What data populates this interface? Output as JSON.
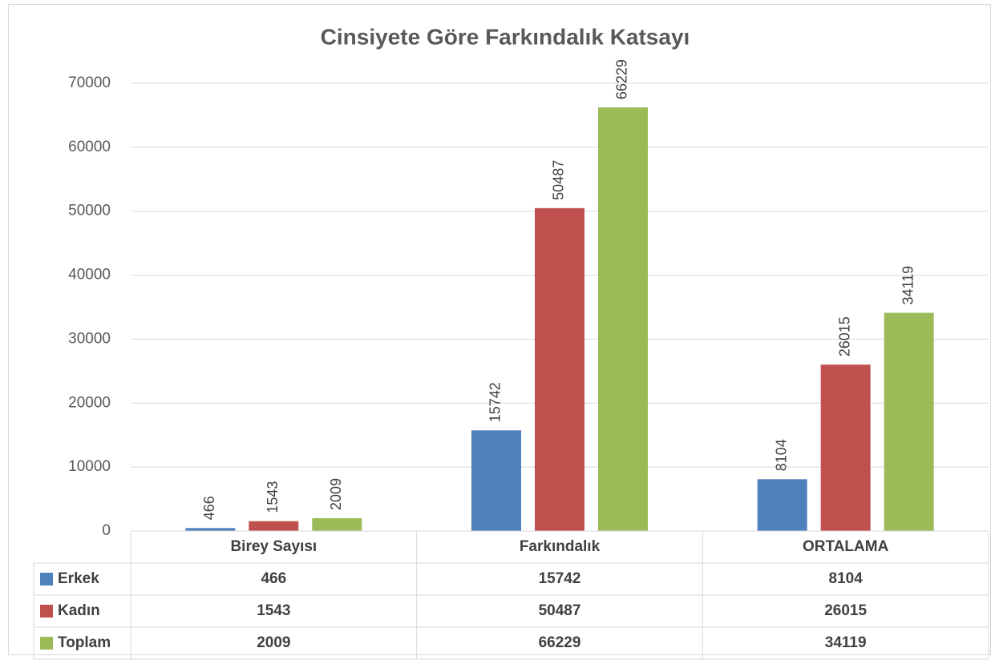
{
  "chart_data": {
    "type": "bar",
    "title": "Cinsiyete Göre Farkındalık Katsayı",
    "categories": [
      "Birey Sayısı",
      "Farkındalık",
      "ORTALAMA"
    ],
    "series": [
      {
        "name": "Erkek",
        "color": "#4f81bd",
        "values": [
          466,
          15742,
          8104
        ]
      },
      {
        "name": "Kadın",
        "color": "#c0504d",
        "values": [
          1543,
          50487,
          26015
        ]
      },
      {
        "name": "Toplam",
        "color": "#9bbb59",
        "values": [
          2009,
          66229,
          34119
        ]
      }
    ],
    "ylim": [
      0,
      70000
    ],
    "yticks": [
      0,
      10000,
      20000,
      30000,
      40000,
      50000,
      60000,
      70000
    ],
    "grid": true,
    "data_table": true
  }
}
